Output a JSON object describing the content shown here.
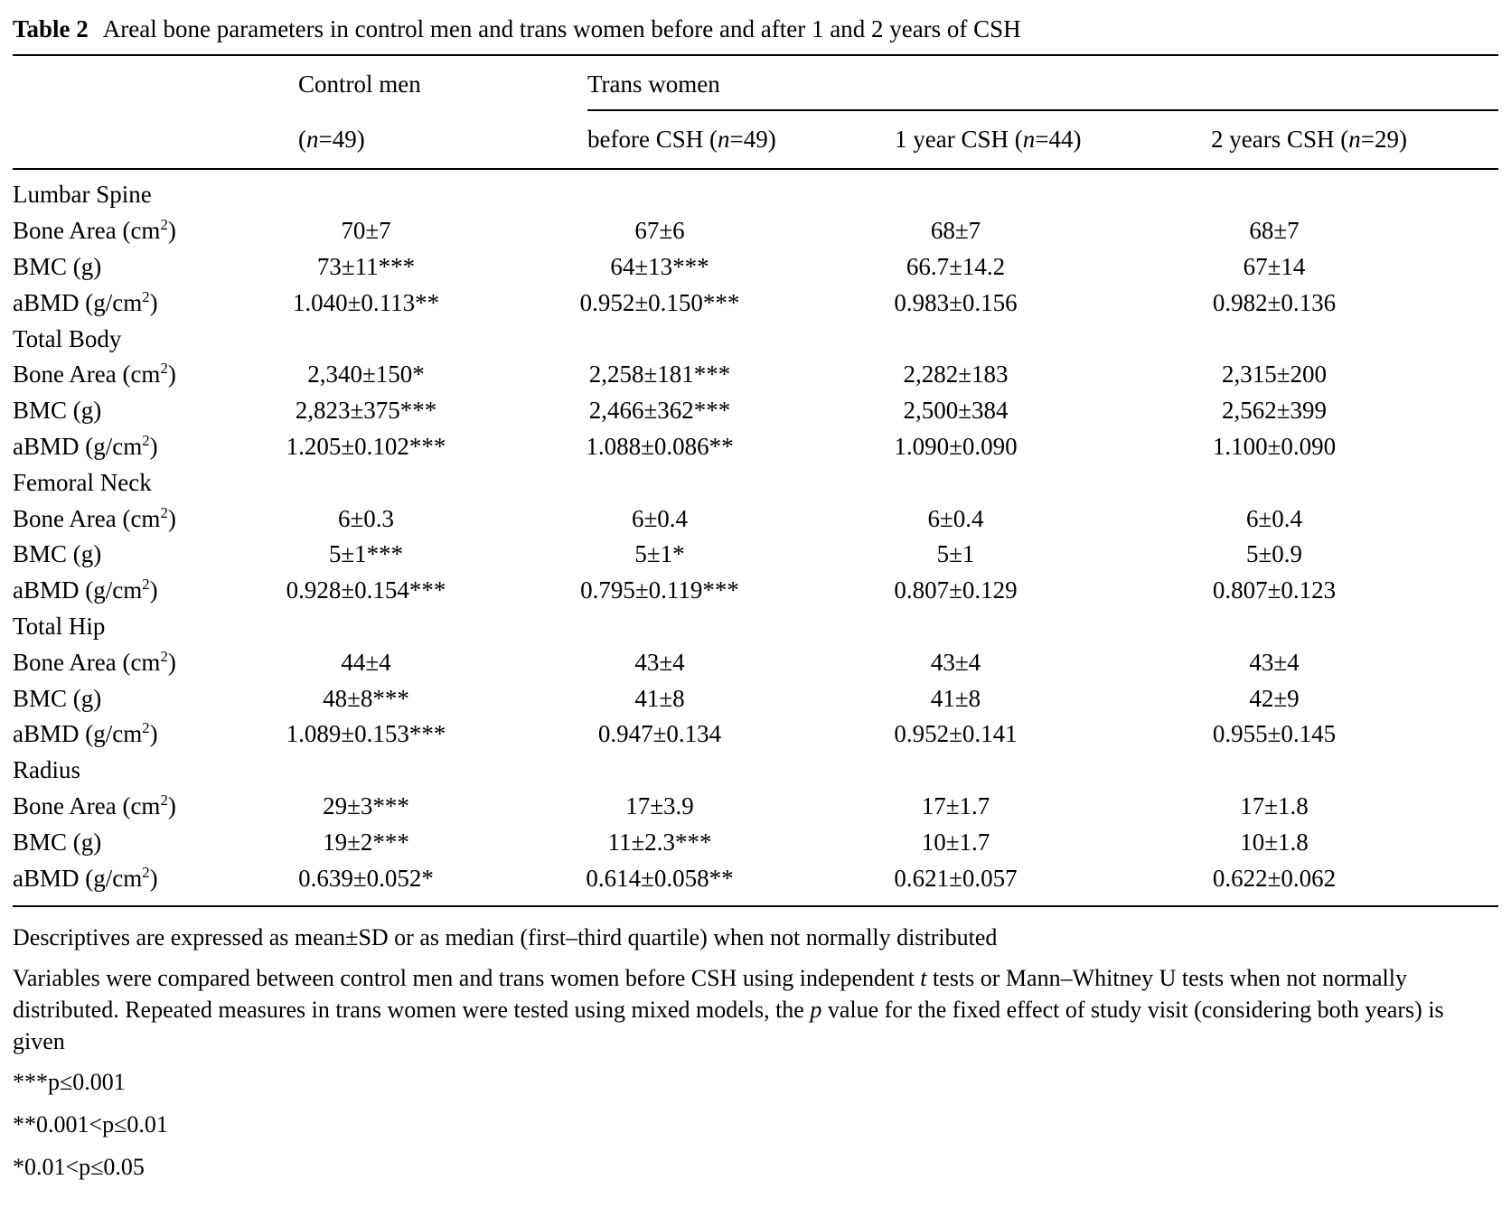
{
  "title": {
    "label": "Table 2",
    "text": "Areal bone parameters in control men and trans women before and after 1 and 2 years of CSH"
  },
  "header": {
    "control_men": {
      "label": "Control men",
      "n_prefix": "(",
      "n_italic": "n",
      "n_suffix": "=49)"
    },
    "trans_women": {
      "label": "Trans women",
      "columns": [
        {
          "prefix": "before CSH (",
          "n_italic": "n",
          "suffix": "=49)"
        },
        {
          "prefix": "1 year CSH (",
          "n_italic": "n",
          "suffix": "=44)"
        },
        {
          "prefix": "2 years CSH (",
          "n_italic": "n",
          "suffix": "=29)"
        }
      ]
    }
  },
  "table": {
    "sections": [
      {
        "name": "Lumbar Spine",
        "rows": [
          {
            "label": "Bone Area (cm²)",
            "values": [
              "70±7",
              "67±6",
              "68±7",
              "68±7"
            ]
          },
          {
            "label": "BMC (g)",
            "values": [
              "73±11***",
              "64±13***",
              "66.7±14.2",
              "67±14"
            ]
          },
          {
            "label": "aBMD (g/cm²)",
            "values": [
              "1.040±0.113**",
              "0.952±0.150***",
              "0.983±0.156",
              "0.982±0.136"
            ]
          }
        ]
      },
      {
        "name": "Total Body",
        "rows": [
          {
            "label": "Bone Area (cm²)",
            "values": [
              "2,340±150*",
              "2,258±181***",
              "2,282±183",
              "2,315±200"
            ]
          },
          {
            "label": "BMC (g)",
            "values": [
              "2,823±375***",
              "2,466±362***",
              "2,500±384",
              "2,562±399"
            ]
          },
          {
            "label": "aBMD (g/cm²)",
            "values": [
              "1.205±0.102***",
              "1.088±0.086**",
              "1.090±0.090",
              "1.100±0.090"
            ]
          }
        ]
      },
      {
        "name": "Femoral Neck",
        "rows": [
          {
            "label": "Bone Area (cm²)",
            "values": [
              "6±0.3",
              "6±0.4",
              "6±0.4",
              "6±0.4"
            ]
          },
          {
            "label": "BMC (g)",
            "values": [
              "5±1***",
              "5±1*",
              "5±1",
              "5±0.9"
            ]
          },
          {
            "label": "aBMD (g/cm²)",
            "values": [
              "0.928±0.154***",
              "0.795±0.119***",
              "0.807±0.129",
              "0.807±0.123"
            ]
          }
        ]
      },
      {
        "name": "Total Hip",
        "rows": [
          {
            "label": "Bone Area (cm²)",
            "values": [
              "44±4",
              "43±4",
              "43±4",
              "43±4"
            ]
          },
          {
            "label": "BMC (g)",
            "values": [
              "48±8***",
              "41±8",
              "41±8",
              "42±9"
            ]
          },
          {
            "label": "aBMD (g/cm²)",
            "values": [
              "1.089±0.153***",
              "0.947±0.134",
              "0.952±0.141",
              "0.955±0.145"
            ]
          }
        ]
      },
      {
        "name": "Radius",
        "rows": [
          {
            "label": "Bone Area (cm²)",
            "values": [
              "29±3***",
              "17±3.9",
              "17±1.7",
              "17±1.8"
            ]
          },
          {
            "label": "BMC (g)",
            "values": [
              "19±2***",
              "11±2.3***",
              "10±1.7",
              "10±1.8"
            ]
          },
          {
            "label": "aBMD (g/cm²)",
            "values": [
              "0.639±0.052*",
              "0.614±0.058**",
              "0.621±0.057",
              "0.622±0.062"
            ]
          }
        ]
      }
    ]
  },
  "footnotes": [
    {
      "sig": false,
      "segments": [
        {
          "text": "Descriptives are expressed as mean±SD or as median (first–third quartile) when not normally distributed"
        }
      ]
    },
    {
      "sig": false,
      "segments": [
        {
          "text": "Variables were compared between control men and trans women before CSH using independent "
        },
        {
          "italic": "t"
        },
        {
          "text": " tests or Mann–Whitney U tests when not normally distributed. Repeated measures in trans women were tested using mixed models, the "
        },
        {
          "italic": "p"
        },
        {
          "text": " value for the fixed effect of study visit (considering both years) is given"
        }
      ]
    },
    {
      "sig": true,
      "segments": [
        {
          "text": "***p≤0.001"
        }
      ]
    },
    {
      "sig": true,
      "segments": [
        {
          "text": "**0.001<p≤0.01"
        }
      ]
    },
    {
      "sig": true,
      "segments": [
        {
          "text": "*0.01<p≤0.05"
        }
      ]
    }
  ]
}
